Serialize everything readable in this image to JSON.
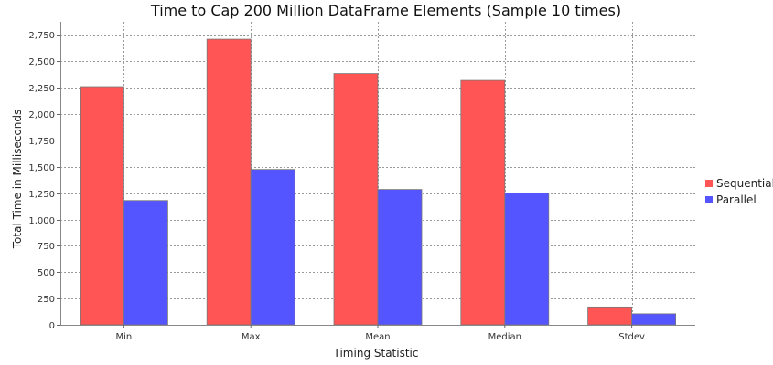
{
  "chart_data": {
    "type": "bar",
    "title": "Time to Cap 200 Million DataFrame Elements (Sample 10 times)",
    "xlabel": "Timing Statistic",
    "ylabel": "Total Time in Milliseconds",
    "categories": [
      "Min",
      "Max",
      "Mean",
      "Median",
      "Stdev"
    ],
    "series": [
      {
        "name": "Sequential",
        "color": "#ff5555",
        "values": [
          2260,
          2710,
          2385,
          2320,
          170
        ]
      },
      {
        "name": "Parallel",
        "color": "#5555ff",
        "values": [
          1180,
          1475,
          1285,
          1250,
          105
        ]
      }
    ],
    "ylim": [
      0,
      2875
    ],
    "yticks": [
      0,
      250,
      500,
      750,
      1000,
      1250,
      1500,
      1750,
      2000,
      2250,
      2500,
      2750
    ],
    "ytick_labels": [
      "0",
      "250",
      "500",
      "750",
      "1,000",
      "1,250",
      "1,500",
      "1,750",
      "2,000",
      "2,250",
      "2,500",
      "2,750"
    ],
    "grid": true,
    "legend_position": "right"
  }
}
